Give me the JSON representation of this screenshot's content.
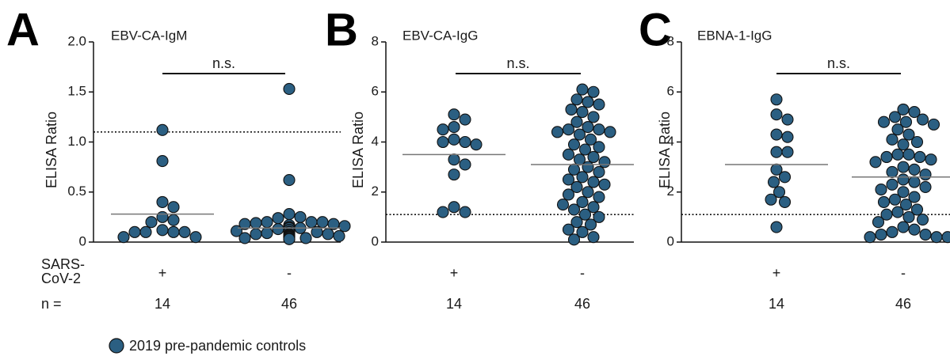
{
  "figure": {
    "group_label": [
      "SARS-",
      "CoV-2"
    ],
    "n_label": "n =",
    "legend": {
      "label": "2019 pre-pandemic controls",
      "color": "#2b5f82"
    }
  },
  "chart_data": [
    {
      "type": "dot",
      "panel_label": "A",
      "title": "EBV-CA-IgM",
      "y_label": "ELISA Ratio",
      "annotation": "n.s.",
      "categories": [
        "+",
        "-"
      ],
      "n": [
        14,
        46
      ],
      "color": "#2b5f82",
      "ylim": [
        0,
        2
      ],
      "yticks": [
        0,
        0.5,
        {
          "value": 1,
          "label": "1.0"
        },
        1.5,
        {
          "value": 2,
          "label": "2.0"
        }
      ],
      "threshold": 1.1,
      "groups": [
        {
          "center": 0.28,
          "values": [
            1.12,
            0.81,
            0.4,
            0.35,
            0.25,
            0.22,
            0.2,
            0.12,
            0.1,
            0.1,
            0.1,
            0.1,
            0.05,
            0.05
          ]
        },
        {
          "center": 0.14,
          "values": [
            1.53,
            0.62,
            0.28,
            0.25,
            0.24,
            0.2,
            0.2,
            0.2,
            0.19,
            0.18,
            0.18,
            0.17,
            0.16,
            0.15,
            0.15,
            0.15,
            0.14,
            0.14,
            0.13,
            0.12,
            0.12,
            0.12,
            0.11,
            0.1,
            0.1,
            0.1,
            0.1,
            0.1,
            0.09,
            0.08,
            0.08,
            0.08,
            0.07,
            0.07,
            0.06,
            0.06,
            0.06,
            0.05,
            0.05,
            0.05,
            0.05,
            0.04,
            0.04,
            0.04,
            0.03,
            0.03
          ]
        }
      ]
    },
    {
      "type": "dot",
      "panel_label": "B",
      "title": "EBV-CA-IgG",
      "y_label": "ELISA Ratio",
      "annotation": "n.s.",
      "categories": [
        "+",
        "-"
      ],
      "n": [
        14,
        46
      ],
      "color": "#2b5f82",
      "ylim": [
        0,
        8
      ],
      "yticks": [
        0,
        2,
        4,
        6,
        8
      ],
      "threshold": 1.1,
      "groups": [
        {
          "center": 3.5,
          "values": [
            5.1,
            4.9,
            4.6,
            4.5,
            4.1,
            4.0,
            4.0,
            3.9,
            3.3,
            3.1,
            2.7,
            1.4,
            1.2,
            1.2
          ]
        },
        {
          "center": 3.1,
          "values": [
            6.1,
            6.0,
            5.7,
            5.6,
            5.5,
            5.3,
            5.2,
            5.0,
            4.8,
            4.6,
            4.5,
            4.5,
            4.4,
            4.4,
            4.3,
            4.1,
            3.9,
            3.8,
            3.7,
            3.5,
            3.4,
            3.3,
            3.2,
            3.0,
            2.9,
            2.8,
            2.6,
            2.5,
            2.4,
            2.3,
            2.2,
            2.0,
            1.9,
            1.8,
            1.6,
            1.5,
            1.4,
            1.3,
            1.1,
            1.0,
            0.8,
            0.7,
            0.5,
            0.4,
            0.2,
            0.1
          ]
        }
      ]
    },
    {
      "type": "dot",
      "panel_label": "C",
      "title": "EBNA-1-IgG",
      "y_label": "ELISA Ratio",
      "annotation": "n.s.",
      "categories": [
        "+",
        "-"
      ],
      "n": [
        14,
        46
      ],
      "color": "#2b5f82",
      "ylim": [
        0,
        8
      ],
      "yticks": [
        0,
        2,
        4,
        6,
        8
      ],
      "threshold": 1.1,
      "groups": [
        {
          "center": 3.1,
          "values": [
            5.7,
            5.1,
            4.9,
            4.3,
            4.2,
            3.6,
            3.6,
            2.9,
            2.6,
            2.4,
            2.0,
            1.7,
            1.6,
            0.6
          ]
        },
        {
          "center": 2.6,
          "values": [
            5.3,
            5.2,
            5.0,
            4.9,
            4.8,
            4.8,
            4.7,
            4.5,
            4.3,
            4.1,
            4.0,
            3.9,
            3.5,
            3.5,
            3.4,
            3.4,
            3.3,
            3.2,
            3.0,
            2.9,
            2.8,
            2.7,
            2.5,
            2.4,
            2.3,
            2.2,
            2.1,
            2.0,
            1.8,
            1.7,
            1.6,
            1.5,
            1.3,
            1.2,
            1.1,
            1.0,
            0.9,
            0.8,
            0.6,
            0.5,
            0.4,
            0.3,
            0.3,
            0.2,
            0.2,
            0.2
          ]
        }
      ]
    }
  ]
}
